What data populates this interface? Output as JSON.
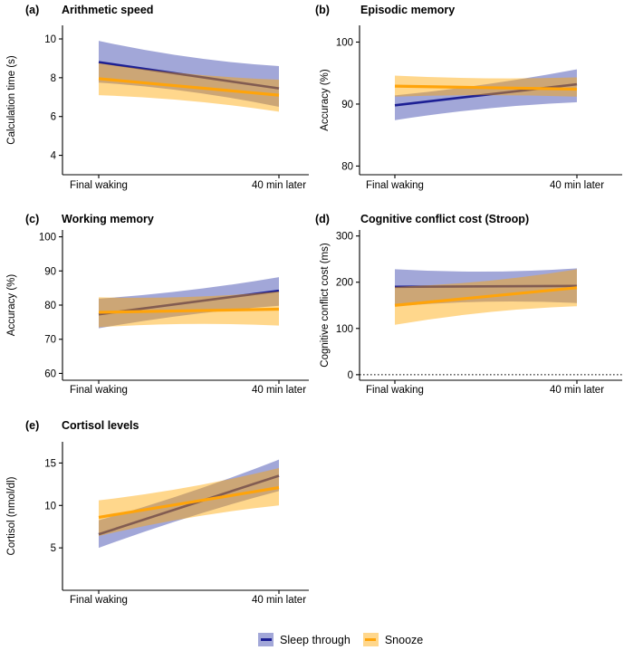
{
  "figure": {
    "background": "#ffffff",
    "legend": {
      "items": [
        {
          "label": "Sleep through",
          "line_color": "#1c1f94",
          "ribbon_color": "rgba(49,60,169,0.45)"
        },
        {
          "label": "Snooze",
          "line_color": "#ffa40a",
          "ribbon_color": "rgba(255,167,0,0.45)"
        }
      ]
    }
  },
  "chart_data": [
    {
      "type": "line",
      "panel_label": "(a)",
      "title": "Arithmetic speed",
      "ylabel": "Calculation time (s)",
      "x": [
        "Final waking",
        "40 min later"
      ],
      "ylim": [
        3.0,
        10.7
      ],
      "yticks": [
        4,
        6,
        8,
        10
      ],
      "grid": false,
      "series": [
        {
          "name": "Sleep through",
          "mean": [
            8.8,
            7.45
          ],
          "ci_lower": [
            7.75,
            6.5
          ],
          "ci_upper": [
            9.9,
            8.6
          ]
        },
        {
          "name": "Snooze",
          "mean": [
            7.95,
            7.1
          ],
          "ci_lower": [
            7.1,
            6.25
          ],
          "ci_upper": [
            8.75,
            7.9
          ]
        }
      ]
    },
    {
      "type": "line",
      "panel_label": "(b)",
      "title": "Episodic memory",
      "ylabel": "Accuracy (%)",
      "x": [
        "Final waking",
        "40 min later"
      ],
      "ylim": [
        78.6,
        102.7
      ],
      "yticks": [
        80,
        90,
        100
      ],
      "grid": false,
      "series": [
        {
          "name": "Sleep through",
          "mean": [
            89.8,
            93.2
          ],
          "ci_lower": [
            87.4,
            90.3
          ],
          "ci_upper": [
            91.4,
            95.6
          ]
        },
        {
          "name": "Snooze",
          "mean": [
            92.9,
            92.4
          ],
          "ci_lower": [
            91.2,
            91.2
          ],
          "ci_upper": [
            94.6,
            94.3
          ]
        }
      ]
    },
    {
      "type": "line",
      "panel_label": "(c)",
      "title": "Working memory",
      "ylabel": "Accuracy (%)",
      "x": [
        "Final waking",
        "40 min later"
      ],
      "ylim": [
        58,
        102
      ],
      "yticks": [
        60,
        70,
        80,
        90,
        100
      ],
      "grid": false,
      "series": [
        {
          "name": "Sleep through",
          "mean": [
            77.3,
            84.2
          ],
          "ci_lower": [
            73.2,
            79.8
          ],
          "ci_upper": [
            81.9,
            88.2
          ]
        },
        {
          "name": "Snooze",
          "mean": [
            77.9,
            78.8
          ],
          "ci_lower": [
            73.5,
            74.0
          ],
          "ci_upper": [
            82.3,
            84.0
          ]
        }
      ]
    },
    {
      "type": "line",
      "panel_label": "(d)",
      "title": "Cognitive conflict cost (Stroop)",
      "ylabel": "Cognitive conflict cost (ms)",
      "x": [
        "Final waking",
        "40 min later"
      ],
      "ylim": [
        -12,
        313
      ],
      "yticks": [
        0,
        100,
        200,
        300
      ],
      "grid": false,
      "hline": {
        "y": 0,
        "style": "dotted"
      },
      "series": [
        {
          "name": "Sleep through",
          "mean": [
            190,
            192
          ],
          "ci_lower": [
            148,
            155
          ],
          "ci_upper": [
            228,
            230
          ]
        },
        {
          "name": "Snooze",
          "mean": [
            150,
            188
          ],
          "ci_lower": [
            108,
            148
          ],
          "ci_upper": [
            190,
            228
          ]
        }
      ]
    },
    {
      "type": "line",
      "panel_label": "(e)",
      "title": "Cortisol levels",
      "ylabel": "Cortisol (nmol/dl)",
      "x": [
        "Final waking",
        "40 min later"
      ],
      "ylim": [
        0,
        17.5
      ],
      "yticks": [
        5,
        10,
        15
      ],
      "grid": false,
      "series": [
        {
          "name": "Sleep through",
          "mean": [
            6.6,
            13.5
          ],
          "ci_lower": [
            5.0,
            11.7
          ],
          "ci_upper": [
            8.25,
            15.4
          ]
        },
        {
          "name": "Snooze",
          "mean": [
            8.6,
            12.1
          ],
          "ci_lower": [
            6.4,
            10.0
          ],
          "ci_upper": [
            10.6,
            14.4
          ]
        }
      ]
    }
  ]
}
